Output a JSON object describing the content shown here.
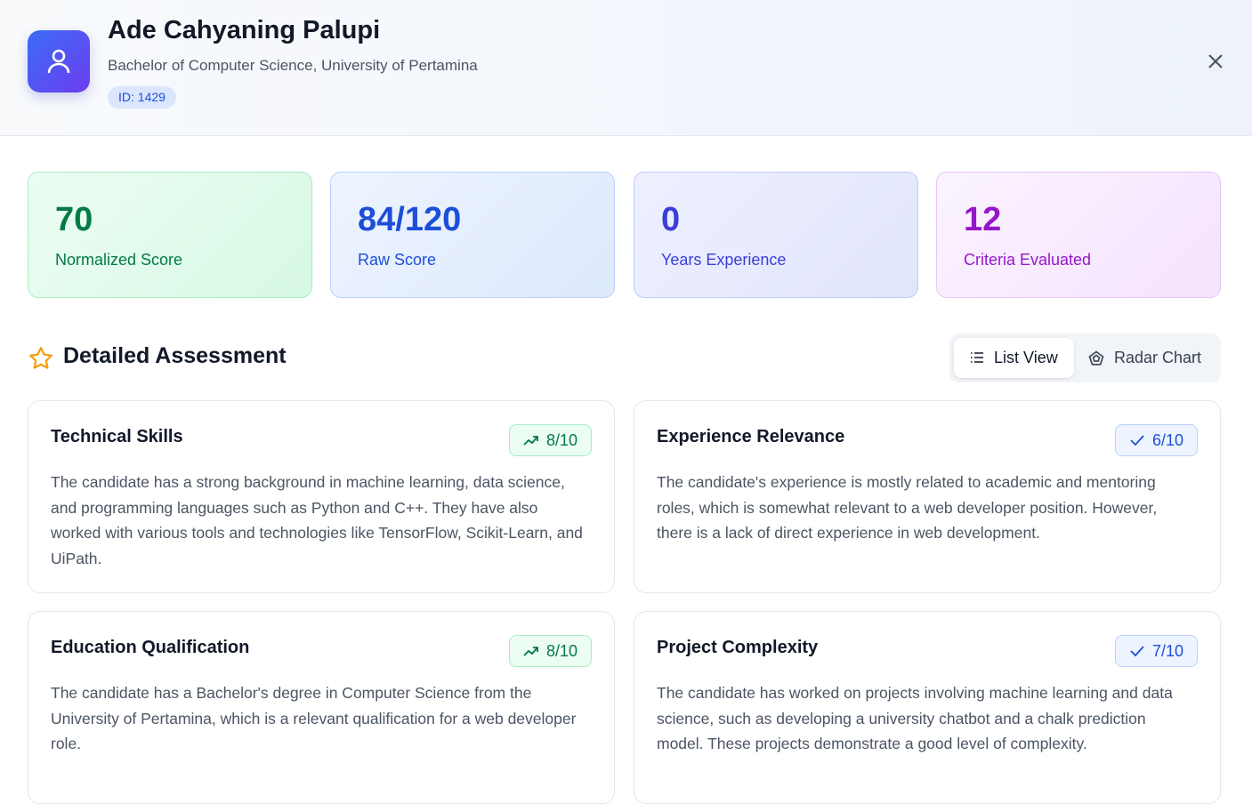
{
  "header": {
    "name": "Ade Cahyaning Palupi",
    "subtitle": "Bachelor of Computer Science, University of Pertamina",
    "id_badge": "ID: 1429"
  },
  "stats": [
    {
      "value": "70",
      "label": "Normalized Score"
    },
    {
      "value": "84/120",
      "label": "Raw Score"
    },
    {
      "value": "0",
      "label": "Years Experience"
    },
    {
      "value": "12",
      "label": "Criteria Evaluated"
    }
  ],
  "section": {
    "title": "Detailed Assessment",
    "toggle": [
      "List View",
      "Radar Chart"
    ]
  },
  "criteria": [
    {
      "title": "Technical Skills",
      "score": "8/10",
      "text": "The candidate has a strong background in machine learning, data science, and programming languages such as Python and C++. They have also worked with various tools and technologies like TensorFlow, Scikit-Learn, and UiPath."
    },
    {
      "title": "Experience Relevance",
      "score": "6/10",
      "text": "The candidate's experience is mostly related to academic and mentoring roles, which is somewhat relevant to a web developer position. However, there is a lack of direct experience in web development."
    },
    {
      "title": "Education Qualification",
      "score": "8/10",
      "text": "The candidate has a Bachelor's degree in Computer Science from the University of Pertamina, which is a relevant qualification for a web developer role."
    },
    {
      "title": "Project Complexity",
      "score": "7/10",
      "text": "The candidate has worked on projects involving machine learning and data science, such as developing a university chatbot and a chalk prediction model. These projects demonstrate a good level of complexity."
    }
  ]
}
